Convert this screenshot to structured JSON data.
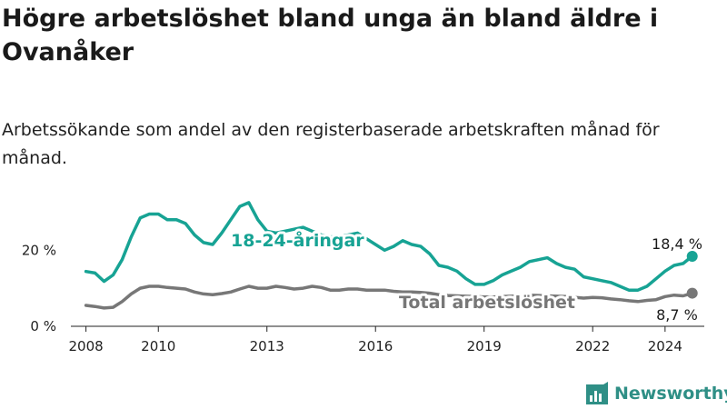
{
  "title": "Högre arbetslöshet bland unga än bland äldre i Ovanåker",
  "subtitle": "Arbetssökande som andel av den registerbaserade arbetskraften månad för månad.",
  "logo": {
    "text": "Newsworthy",
    "icon": "newsworthy-logo-icon"
  },
  "colors": {
    "youth": "#17a394",
    "total": "#777777",
    "axis": "#222222"
  },
  "chart_data": {
    "type": "line",
    "y_ticks": [
      {
        "value": 0,
        "label": "0 %"
      },
      {
        "value": 20,
        "label": "20 %"
      }
    ],
    "x_ticks": [
      {
        "value": "2008-01",
        "label": "2008"
      },
      {
        "value": "2010-01",
        "label": "2010"
      },
      {
        "value": "2013-01",
        "label": "2013"
      },
      {
        "value": "2016-01",
        "label": "2016"
      },
      {
        "value": "2019-01",
        "label": "2019"
      },
      {
        "value": "2022-01",
        "label": "2022"
      },
      {
        "value": "2024-01",
        "label": "2024"
      }
    ],
    "ylim": [
      0,
      32
    ],
    "xlim": [
      "2007-08",
      "2025-02"
    ],
    "series": [
      {
        "name": "18-24-åringar",
        "end_label": "18,4 %",
        "points": [
          [
            "2008-01",
            14.4
          ],
          [
            "2008-04",
            14.0
          ],
          [
            "2008-07",
            11.8
          ],
          [
            "2008-10",
            13.5
          ],
          [
            "2009-01",
            17.5
          ],
          [
            "2009-04",
            23.5
          ],
          [
            "2009-07",
            28.5
          ],
          [
            "2009-10",
            29.5
          ],
          [
            "2010-01",
            29.5
          ],
          [
            "2010-04",
            28.0
          ],
          [
            "2010-07",
            28.0
          ],
          [
            "2010-10",
            27.0
          ],
          [
            "2011-01",
            24.0
          ],
          [
            "2011-04",
            22.0
          ],
          [
            "2011-07",
            21.5
          ],
          [
            "2011-10",
            24.5
          ],
          [
            "2012-01",
            28.0
          ],
          [
            "2012-04",
            31.5
          ],
          [
            "2012-07",
            32.5
          ],
          [
            "2012-10",
            28.0
          ],
          [
            "2013-01",
            25.0
          ],
          [
            "2013-04",
            24.5
          ],
          [
            "2013-07",
            25.0
          ],
          [
            "2013-10",
            25.5
          ],
          [
            "2014-01",
            26.0
          ],
          [
            "2014-04",
            25.0
          ],
          [
            "2014-07",
            24.0
          ],
          [
            "2014-10",
            23.5
          ],
          [
            "2015-01",
            23.5
          ],
          [
            "2015-04",
            24.0
          ],
          [
            "2015-07",
            24.5
          ],
          [
            "2015-10",
            23.0
          ],
          [
            "2016-01",
            21.5
          ],
          [
            "2016-04",
            20.0
          ],
          [
            "2016-07",
            21.0
          ],
          [
            "2016-10",
            22.5
          ],
          [
            "2017-01",
            21.5
          ],
          [
            "2017-04",
            21.0
          ],
          [
            "2017-07",
            19.0
          ],
          [
            "2017-10",
            16.0
          ],
          [
            "2018-01",
            15.5
          ],
          [
            "2018-04",
            14.5
          ],
          [
            "2018-07",
            12.5
          ],
          [
            "2018-10",
            11.0
          ],
          [
            "2019-01",
            11.0
          ],
          [
            "2019-04",
            12.0
          ],
          [
            "2019-07",
            13.5
          ],
          [
            "2019-10",
            14.5
          ],
          [
            "2020-01",
            15.5
          ],
          [
            "2020-04",
            17.0
          ],
          [
            "2020-07",
            17.5
          ],
          [
            "2020-10",
            18.0
          ],
          [
            "2021-01",
            16.5
          ],
          [
            "2021-04",
            15.5
          ],
          [
            "2021-07",
            15.0
          ],
          [
            "2021-10",
            13.0
          ],
          [
            "2022-01",
            12.5
          ],
          [
            "2022-04",
            12.0
          ],
          [
            "2022-07",
            11.5
          ],
          [
            "2022-10",
            10.5
          ],
          [
            "2023-01",
            9.5
          ],
          [
            "2023-04",
            9.5
          ],
          [
            "2023-07",
            10.5
          ],
          [
            "2023-10",
            12.5
          ],
          [
            "2024-01",
            14.5
          ],
          [
            "2024-04",
            16.0
          ],
          [
            "2024-07",
            16.5
          ],
          [
            "2024-10",
            18.4
          ]
        ]
      },
      {
        "name": "Total arbetslöshet",
        "end_label": "8,7 %",
        "points": [
          [
            "2008-01",
            5.5
          ],
          [
            "2008-04",
            5.2
          ],
          [
            "2008-07",
            4.8
          ],
          [
            "2008-10",
            5.0
          ],
          [
            "2009-01",
            6.5
          ],
          [
            "2009-04",
            8.5
          ],
          [
            "2009-07",
            10.0
          ],
          [
            "2009-10",
            10.5
          ],
          [
            "2010-01",
            10.5
          ],
          [
            "2010-04",
            10.2
          ],
          [
            "2010-07",
            10.0
          ],
          [
            "2010-10",
            9.8
          ],
          [
            "2011-01",
            9.0
          ],
          [
            "2011-04",
            8.5
          ],
          [
            "2011-07",
            8.3
          ],
          [
            "2011-10",
            8.6
          ],
          [
            "2012-01",
            9.0
          ],
          [
            "2012-04",
            9.8
          ],
          [
            "2012-07",
            10.5
          ],
          [
            "2012-10",
            10.0
          ],
          [
            "2013-01",
            10.0
          ],
          [
            "2013-04",
            10.5
          ],
          [
            "2013-07",
            10.2
          ],
          [
            "2013-10",
            9.8
          ],
          [
            "2014-01",
            10.0
          ],
          [
            "2014-04",
            10.5
          ],
          [
            "2014-07",
            10.2
          ],
          [
            "2014-10",
            9.5
          ],
          [
            "2015-01",
            9.5
          ],
          [
            "2015-04",
            9.8
          ],
          [
            "2015-07",
            9.8
          ],
          [
            "2015-10",
            9.5
          ],
          [
            "2016-01",
            9.5
          ],
          [
            "2016-04",
            9.5
          ],
          [
            "2016-07",
            9.2
          ],
          [
            "2016-10",
            9.0
          ],
          [
            "2017-01",
            9.0
          ],
          [
            "2017-04",
            8.9
          ],
          [
            "2017-07",
            8.7
          ],
          [
            "2017-10",
            8.3
          ],
          [
            "2018-01",
            8.1
          ],
          [
            "2018-04",
            8.0
          ],
          [
            "2018-07",
            7.9
          ],
          [
            "2018-10",
            7.8
          ],
          [
            "2019-01",
            7.7
          ],
          [
            "2019-04",
            7.7
          ],
          [
            "2019-07",
            7.8
          ],
          [
            "2019-10",
            7.9
          ],
          [
            "2020-01",
            8.0
          ],
          [
            "2020-04",
            8.2
          ],
          [
            "2020-07",
            8.1
          ],
          [
            "2020-10",
            8.0
          ],
          [
            "2021-01",
            7.9
          ],
          [
            "2021-04",
            7.8
          ],
          [
            "2021-07",
            7.6
          ],
          [
            "2021-10",
            7.4
          ],
          [
            "2022-01",
            7.6
          ],
          [
            "2022-04",
            7.5
          ],
          [
            "2022-07",
            7.2
          ],
          [
            "2022-10",
            7.0
          ],
          [
            "2023-01",
            6.7
          ],
          [
            "2023-04",
            6.5
          ],
          [
            "2023-07",
            6.8
          ],
          [
            "2023-10",
            7.0
          ],
          [
            "2024-01",
            7.8
          ],
          [
            "2024-04",
            8.2
          ],
          [
            "2024-07",
            8.0
          ],
          [
            "2024-10",
            8.7
          ]
        ]
      }
    ],
    "grid": false,
    "legend": "inline labels on lines"
  }
}
